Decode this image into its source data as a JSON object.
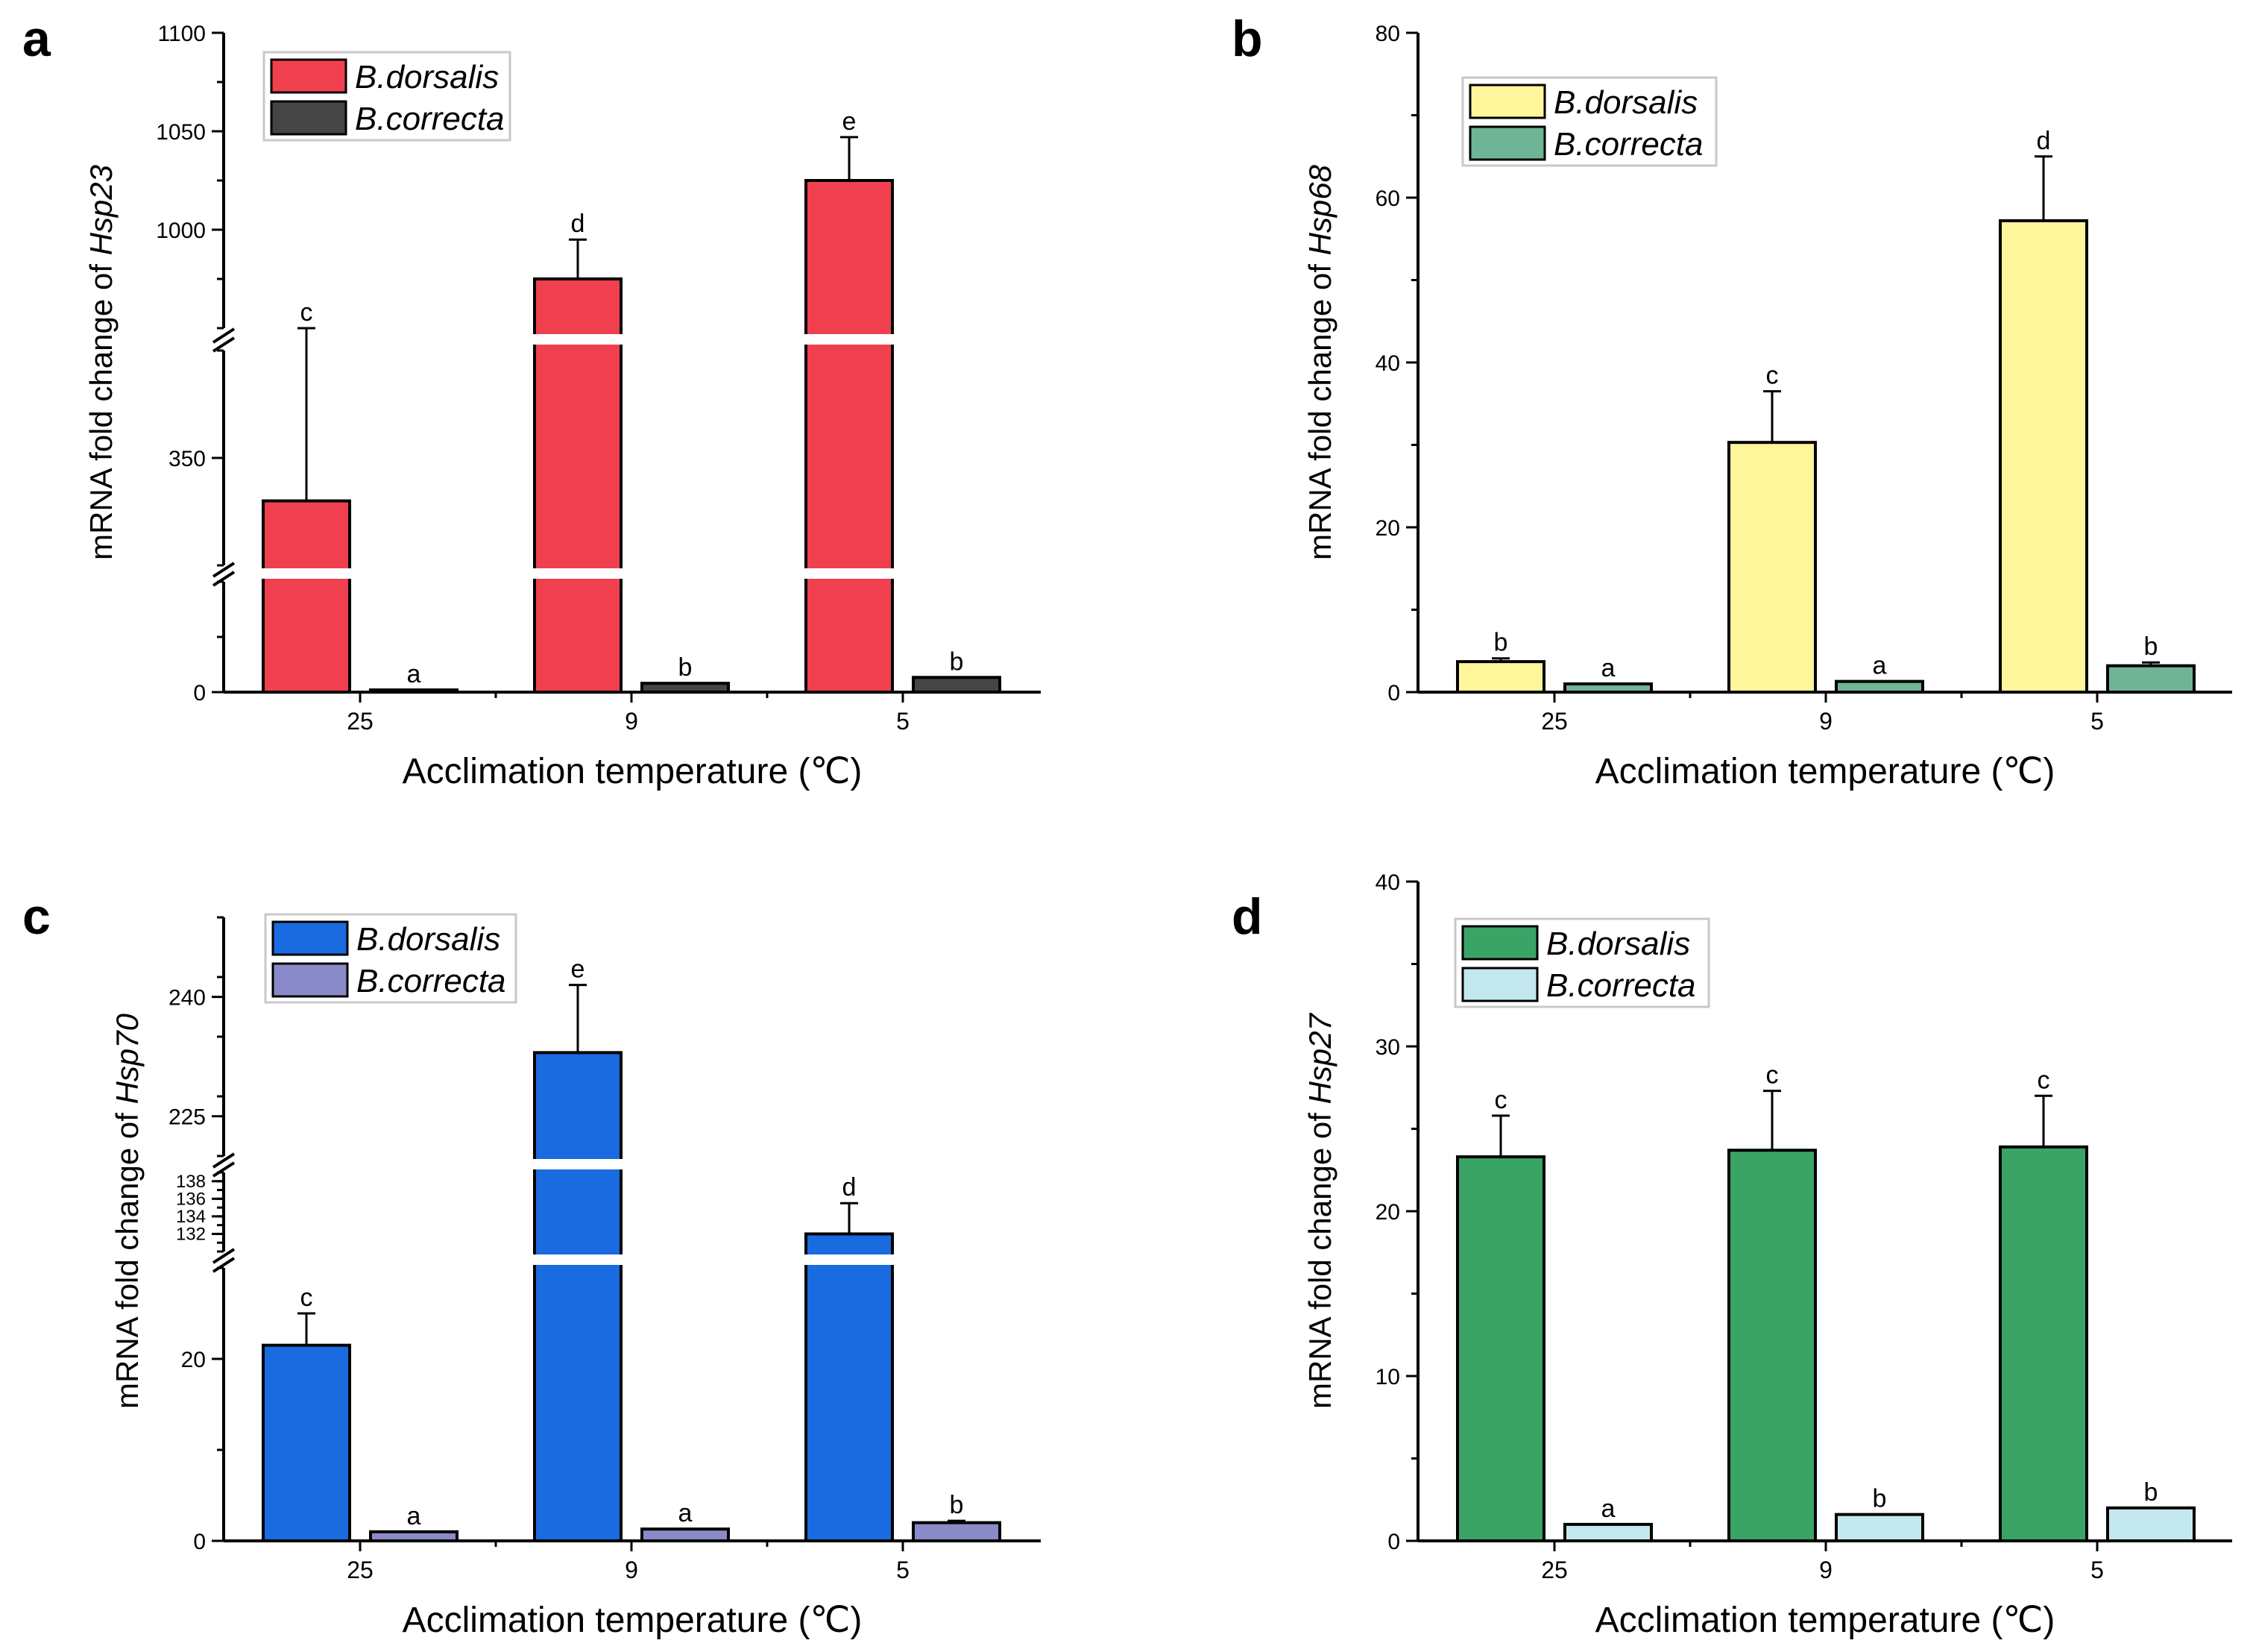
{
  "chart_data": [
    {
      "type": "bar",
      "panel": "a",
      "title": "",
      "xlabel": "Acclimation temperature (℃)",
      "ylabel_prefix": "mRNA fold change of ",
      "ylabel_gene": "Hsp23",
      "categories": [
        "25",
        "9",
        "5"
      ],
      "axis_break": true,
      "segments": [
        {
          "range": [
            0,
            150
          ],
          "ticks": [
            0
          ]
        },
        {
          "range": [
            300,
            400
          ],
          "ticks": [
            350
          ]
        },
        {
          "range": [
            950,
            1100
          ],
          "ticks": [
            1000,
            1050,
            1100
          ]
        }
      ],
      "series": [
        {
          "name": "B.dorsalis",
          "color": "#f04050",
          "values": [
            330,
            975,
            1025
          ],
          "errors": [
            80,
            20,
            22
          ],
          "letters": [
            "c",
            "d",
            "e"
          ]
        },
        {
          "name": "B.correcta",
          "color": "#454545",
          "values": [
            3,
            12,
            20
          ],
          "errors": [
            0,
            0,
            0
          ],
          "letters": [
            "a",
            "b",
            "b"
          ]
        }
      ]
    },
    {
      "type": "bar",
      "panel": "b",
      "title": "",
      "xlabel": "Acclimation temperature (℃)",
      "ylabel_prefix": "mRNA fold change of ",
      "ylabel_gene": "Hsp68",
      "categories": [
        "25",
        "9",
        "5"
      ],
      "ylim": [
        0,
        80
      ],
      "ticks": [
        0,
        20,
        40,
        60,
        80
      ],
      "series": [
        {
          "name": "B.dorsalis",
          "color": "#fff59a",
          "values": [
            3.7,
            30.3,
            57.2
          ],
          "errors": [
            0.4,
            6.2,
            7.8
          ],
          "letters": [
            "b",
            "c",
            "d"
          ]
        },
        {
          "name": "B.correcta",
          "color": "#6fb496",
          "values": [
            1.0,
            1.3,
            3.2
          ],
          "errors": [
            0,
            0,
            0.4
          ],
          "letters": [
            "a",
            "a",
            "b"
          ]
        }
      ]
    },
    {
      "type": "bar",
      "panel": "c",
      "title": "",
      "xlabel": "Acclimation temperature (℃)",
      "ylabel_prefix": "mRNA fold change of ",
      "ylabel_gene": "Hsp70",
      "categories": [
        "25",
        "9",
        "5"
      ],
      "axis_break": true,
      "segments": [
        {
          "range": [
            0,
            30
          ],
          "ticks": [
            0,
            20
          ]
        },
        {
          "range": [
            130,
            139
          ],
          "ticks": [
            132,
            134,
            136,
            138
          ]
        },
        {
          "range": [
            220,
            250
          ],
          "ticks": [
            225,
            240
          ]
        }
      ],
      "series": [
        {
          "name": "B.dorsalis",
          "color": "#1a6ae0",
          "values": [
            21.5,
            233,
            132
          ],
          "errors": [
            3.5,
            8.5,
            3.5
          ],
          "letters": [
            "c",
            "e",
            "d"
          ]
        },
        {
          "name": "B.correcta",
          "color": "#8a8ac8",
          "values": [
            1.0,
            1.3,
            2.0
          ],
          "errors": [
            0,
            0,
            0.2
          ],
          "letters": [
            "a",
            "a",
            "b"
          ]
        }
      ]
    },
    {
      "type": "bar",
      "panel": "d",
      "title": "",
      "xlabel": "Acclimation temperature (℃)",
      "ylabel_prefix": "mRNA fold change of ",
      "ylabel_gene": "Hsp27",
      "categories": [
        "25",
        "9",
        "5"
      ],
      "ylim": [
        0,
        40
      ],
      "ticks": [
        0,
        10,
        20,
        30,
        40
      ],
      "series": [
        {
          "name": "B.dorsalis",
          "color": "#3aa466",
          "values": [
            23.3,
            23.7,
            23.9
          ],
          "errors": [
            2.5,
            3.6,
            3.1
          ],
          "letters": [
            "c",
            "c",
            "c"
          ]
        },
        {
          "name": "B.correcta",
          "color": "#c3e9ef",
          "values": [
            1.0,
            1.6,
            2.0
          ],
          "errors": [
            0,
            0,
            0
          ],
          "letters": [
            "a",
            "b",
            "b"
          ]
        }
      ]
    }
  ]
}
